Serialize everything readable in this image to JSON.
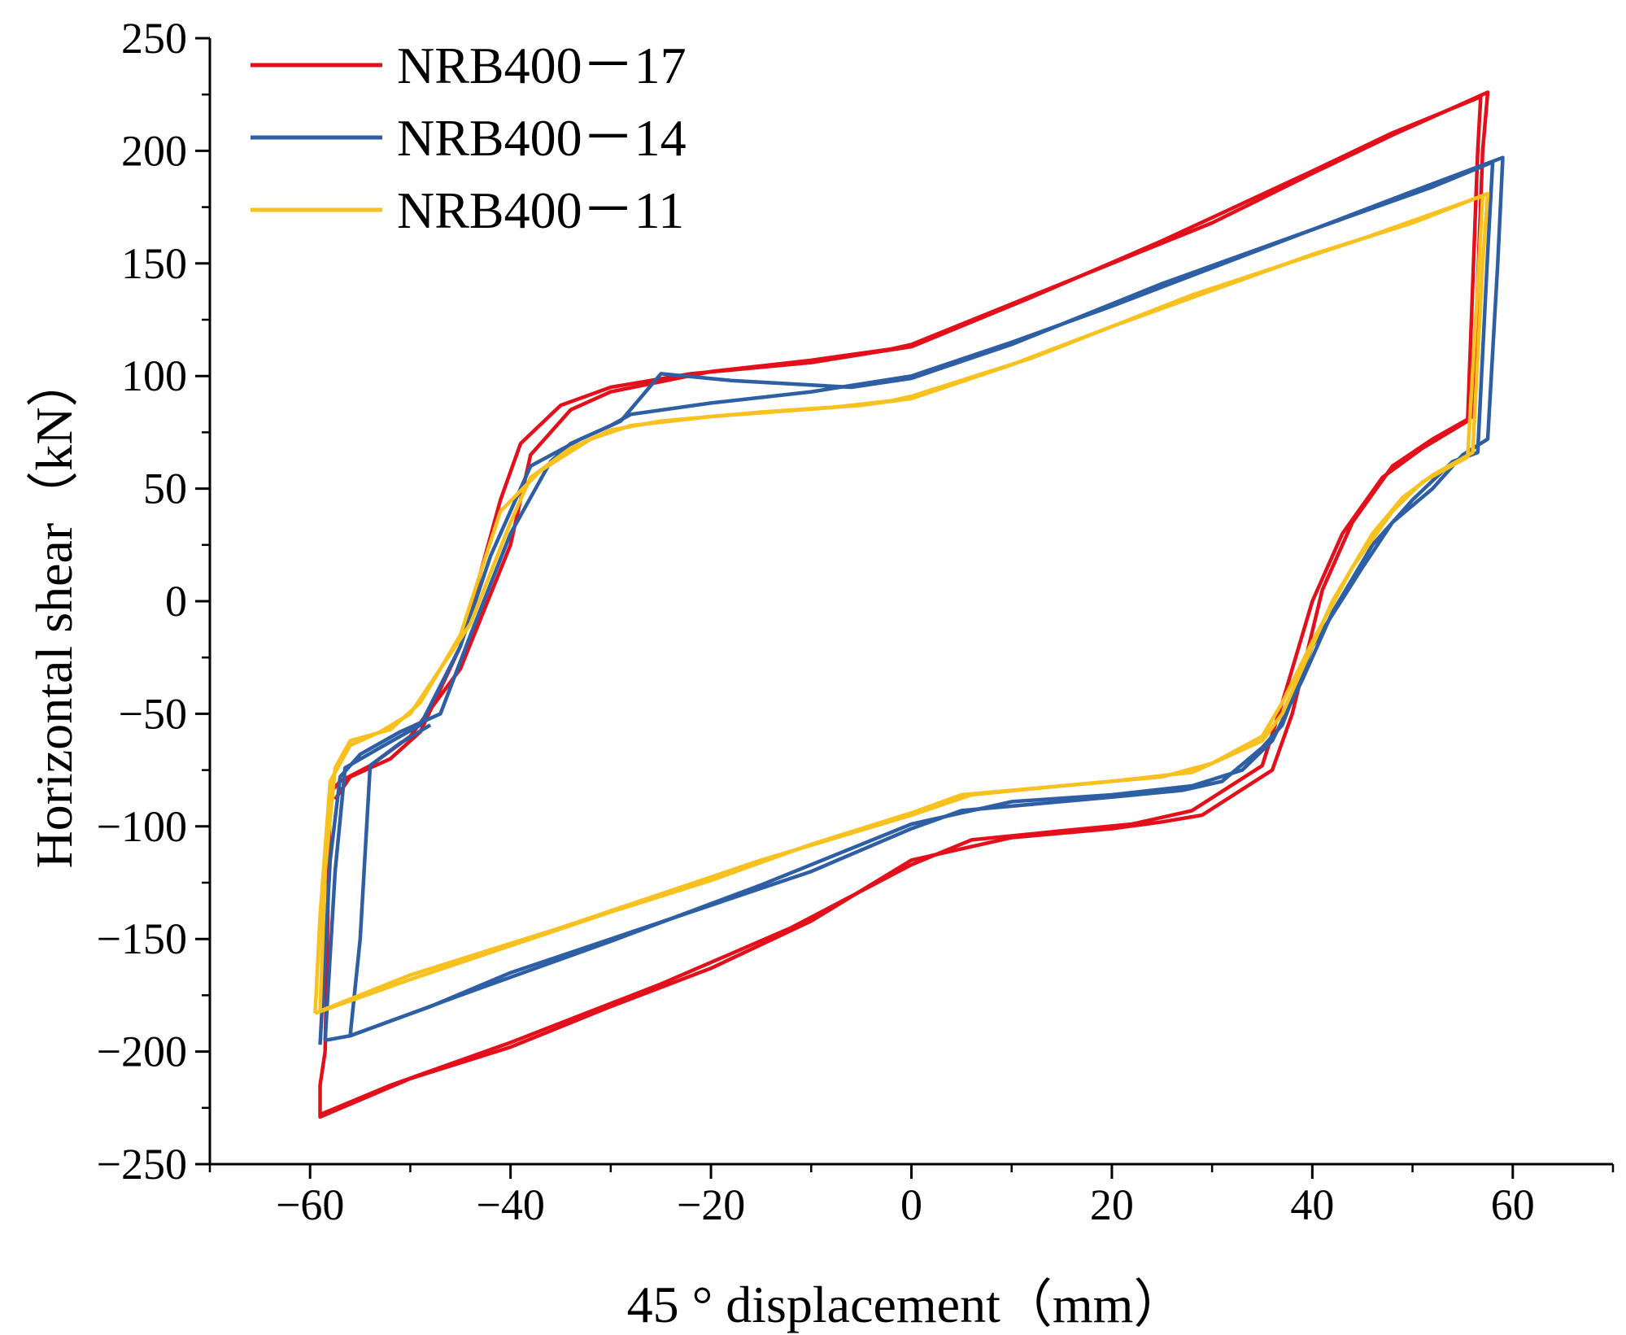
{
  "chart_data": {
    "type": "line",
    "title": "",
    "xlabel": "45 ° displacement（mm）",
    "ylabel": "Horizontal shear（kN）",
    "xlim": [
      -70,
      70
    ],
    "ylim": [
      -250,
      250
    ],
    "xticks": [
      -60,
      -40,
      -20,
      0,
      20,
      40,
      60
    ],
    "yticks": [
      250,
      200,
      150,
      100,
      50,
      0,
      -50,
      -100,
      -150,
      -200,
      -250
    ],
    "xtick_labels": [
      "−60",
      "−40",
      "−20",
      "0",
      "20",
      "40",
      "60"
    ],
    "ytick_labels": [
      "250",
      "200",
      "150",
      "100",
      "50",
      "0",
      "−50",
      "−100",
      "−150",
      "−200",
      "−250"
    ],
    "grid": false,
    "legend": "top-left",
    "series": [
      {
        "name": "NRB400－17",
        "color": "#e3101b",
        "loops": [
          [
            [
              -58.5,
              -200
            ],
            [
              -58,
              -85
            ],
            [
              -57,
              -80
            ],
            [
              -54,
              -73
            ],
            [
              -50,
              -60
            ],
            [
              -45,
              -30
            ],
            [
              -40,
              25
            ],
            [
              -38,
              65
            ],
            [
              -34,
              85
            ],
            [
              -30,
              93
            ],
            [
              -20,
              102
            ],
            [
              -10,
              107
            ],
            [
              -2,
              112
            ],
            [
              0,
              114
            ],
            [
              10,
              132
            ],
            [
              20,
              150
            ],
            [
              30,
              168
            ],
            [
              40,
              190
            ],
            [
              48,
              207
            ],
            [
              57.5,
              226
            ],
            [
              57,
              200
            ],
            [
              56,
              82
            ],
            [
              52,
              72
            ],
            [
              48,
              60
            ],
            [
              44,
              35
            ],
            [
              41,
              5
            ],
            [
              38,
              -50
            ],
            [
              36,
              -75
            ],
            [
              29,
              -95
            ],
            [
              25,
              -98
            ],
            [
              20,
              -101
            ],
            [
              10,
              -105
            ],
            [
              0,
              -115
            ],
            [
              -10,
              -142
            ],
            [
              -20,
              -163
            ],
            [
              -30,
              -180
            ],
            [
              -40,
              -198
            ],
            [
              -50,
              -212
            ],
            [
              -59,
              -229
            ],
            [
              -59,
              -215
            ],
            [
              -58.5,
              -200
            ]
          ],
          [
            [
              -57.5,
              -88
            ],
            [
              -56,
              -78
            ],
            [
              -52,
              -70
            ],
            [
              -49,
              -58
            ],
            [
              -45,
              -20
            ],
            [
              -41,
              45
            ],
            [
              -39,
              70
            ],
            [
              -35,
              87
            ],
            [
              -30,
              95
            ],
            [
              -22,
              101
            ],
            [
              -10,
              106
            ],
            [
              -3,
              111
            ],
            [
              0,
              113
            ],
            [
              12,
              135
            ],
            [
              25,
              160
            ],
            [
              40,
              191
            ],
            [
              48,
              208
            ],
            [
              56.8,
              224
            ],
            [
              56.5,
              200
            ],
            [
              55.5,
              80
            ],
            [
              51,
              68
            ],
            [
              47,
              55
            ],
            [
              43,
              30
            ],
            [
              40,
              0
            ],
            [
              37,
              -45
            ],
            [
              35,
              -73
            ],
            [
              28,
              -93
            ],
            [
              22,
              -99
            ],
            [
              15,
              -102
            ],
            [
              6,
              -106
            ],
            [
              0,
              -117
            ],
            [
              -12,
              -145
            ],
            [
              -25,
              -170
            ],
            [
              -40,
              -196
            ],
            [
              -52,
              -215
            ],
            [
              -59,
              -228
            ]
          ]
        ]
      },
      {
        "name": "NRB400－14",
        "color": "#2e5fa4",
        "loops": [
          [
            [
              -59,
              -197
            ],
            [
              -58,
              -115
            ],
            [
              -57,
              -78
            ],
            [
              -55,
              -68
            ],
            [
              -51,
              -58
            ],
            [
              -47,
              -50
            ],
            [
              -44,
              -15
            ],
            [
              -40,
              30
            ],
            [
              -36,
              62
            ],
            [
              -34,
              70
            ],
            [
              -30,
              78
            ],
            [
              -28,
              83
            ],
            [
              -20,
              88
            ],
            [
              -10,
              93
            ],
            [
              0,
              100
            ],
            [
              10,
              115
            ],
            [
              20,
              131
            ],
            [
              30,
              148
            ],
            [
              40,
              165
            ],
            [
              50,
              182
            ],
            [
              59,
              197
            ],
            [
              58.5,
              150
            ],
            [
              57.5,
              72
            ],
            [
              55,
              65
            ],
            [
              52,
              50
            ],
            [
              48,
              35
            ],
            [
              45,
              15
            ],
            [
              40,
              -20
            ],
            [
              37,
              -55
            ],
            [
              35,
              -65
            ],
            [
              31,
              -80
            ],
            [
              27,
              -84
            ],
            [
              20,
              -87
            ],
            [
              10,
              -91
            ],
            [
              5,
              -93
            ],
            [
              0,
              -101
            ],
            [
              -10,
              -120
            ],
            [
              -20,
              -135
            ],
            [
              -30,
              -150
            ],
            [
              -40,
              -165
            ],
            [
              -48,
              -180
            ],
            [
              -56,
              -193
            ],
            [
              -55,
              -150
            ],
            [
              -54,
              -73
            ],
            [
              -51,
              -63
            ],
            [
              -48,
              -55
            ]
          ],
          [
            [
              -58.5,
              -195
            ],
            [
              -57.5,
              -120
            ],
            [
              -56.5,
              -74
            ],
            [
              -53,
              -65
            ],
            [
              -49,
              -55
            ],
            [
              -45,
              -20
            ],
            [
              -42,
              20
            ],
            [
              -38,
              60
            ],
            [
              -33,
              72
            ],
            [
              -29,
              80
            ],
            [
              -25,
              101
            ],
            [
              -18,
              98
            ],
            [
              -10,
              96
            ],
            [
              -6,
              95
            ],
            [
              0,
              99
            ],
            [
              10,
              114
            ],
            [
              25,
              141
            ],
            [
              40,
              165
            ],
            [
              52,
              184
            ],
            [
              58,
              195
            ],
            [
              57.5,
              155
            ],
            [
              56.5,
              66
            ],
            [
              54,
              62
            ],
            [
              50,
              45
            ],
            [
              46,
              25
            ],
            [
              42,
              -5
            ],
            [
              39,
              -35
            ],
            [
              36,
              -62
            ],
            [
              33,
              -75
            ],
            [
              28,
              -82
            ],
            [
              20,
              -86
            ],
            [
              10,
              -89
            ],
            [
              0,
              -99
            ],
            [
              -15,
              -126
            ],
            [
              -30,
              -151
            ],
            [
              -45,
              -175
            ],
            [
              -56,
              -193
            ],
            [
              -58.5,
              -195
            ]
          ]
        ]
      },
      {
        "name": "NRB400－11",
        "color": "#f7c11f",
        "loops": [
          [
            [
              -59.5,
              -183
            ],
            [
              -59,
              -140
            ],
            [
              -58,
              -80
            ],
            [
              -57,
              -72
            ],
            [
              -56,
              -64
            ],
            [
              -53,
              -58
            ],
            [
              -50,
              -50
            ],
            [
              -47,
              -30
            ],
            [
              -44,
              -10
            ],
            [
              -40,
              35
            ],
            [
              -38,
              55
            ],
            [
              -34,
              68
            ],
            [
              -30,
              76
            ],
            [
              -25,
              80
            ],
            [
              -15,
              84
            ],
            [
              -5,
              87
            ],
            [
              0,
              90
            ],
            [
              10,
              105
            ],
            [
              20,
              122
            ],
            [
              30,
              138
            ],
            [
              40,
              154
            ],
            [
              50,
              168
            ],
            [
              57.5,
              181
            ],
            [
              57,
              150
            ],
            [
              56,
              66
            ],
            [
              52,
              56
            ],
            [
              49,
              46
            ],
            [
              46,
              30
            ],
            [
              42,
              0
            ],
            [
              39,
              -30
            ],
            [
              37,
              -50
            ],
            [
              35,
              -62
            ],
            [
              31,
              -70
            ],
            [
              28,
              -76
            ],
            [
              20,
              -80
            ],
            [
              10,
              -84
            ],
            [
              5,
              -86
            ],
            [
              0,
              -94
            ],
            [
              -10,
              -108
            ],
            [
              -20,
              -124
            ],
            [
              -30,
              -138
            ],
            [
              -40,
              -153
            ],
            [
              -50,
              -168
            ],
            [
              -59.5,
              -183
            ]
          ],
          [
            [
              -59,
              -182
            ],
            [
              -58.5,
              -120
            ],
            [
              -57.5,
              -74
            ],
            [
              -56,
              -62
            ],
            [
              -52,
              -57
            ],
            [
              -49,
              -45
            ],
            [
              -45,
              -15
            ],
            [
              -41,
              40
            ],
            [
              -37,
              58
            ],
            [
              -32,
              72
            ],
            [
              -28,
              78
            ],
            [
              -20,
              82
            ],
            [
              -8,
              86
            ],
            [
              -2,
              89
            ],
            [
              0,
              91
            ],
            [
              12,
              108
            ],
            [
              28,
              136
            ],
            [
              45,
              161
            ],
            [
              57,
              180
            ],
            [
              56.5,
              140
            ],
            [
              55.5,
              64
            ],
            [
              51,
              53
            ],
            [
              48,
              40
            ],
            [
              44,
              15
            ],
            [
              40,
              -18
            ],
            [
              37,
              -45
            ],
            [
              35,
              -60
            ],
            [
              30,
              -72
            ],
            [
              25,
              -78
            ],
            [
              15,
              -82
            ],
            [
              6,
              -86
            ],
            [
              0,
              -95
            ],
            [
              -15,
              -115
            ],
            [
              -35,
              -145
            ],
            [
              -50,
              -166
            ],
            [
              -59,
              -182
            ]
          ]
        ]
      }
    ]
  }
}
